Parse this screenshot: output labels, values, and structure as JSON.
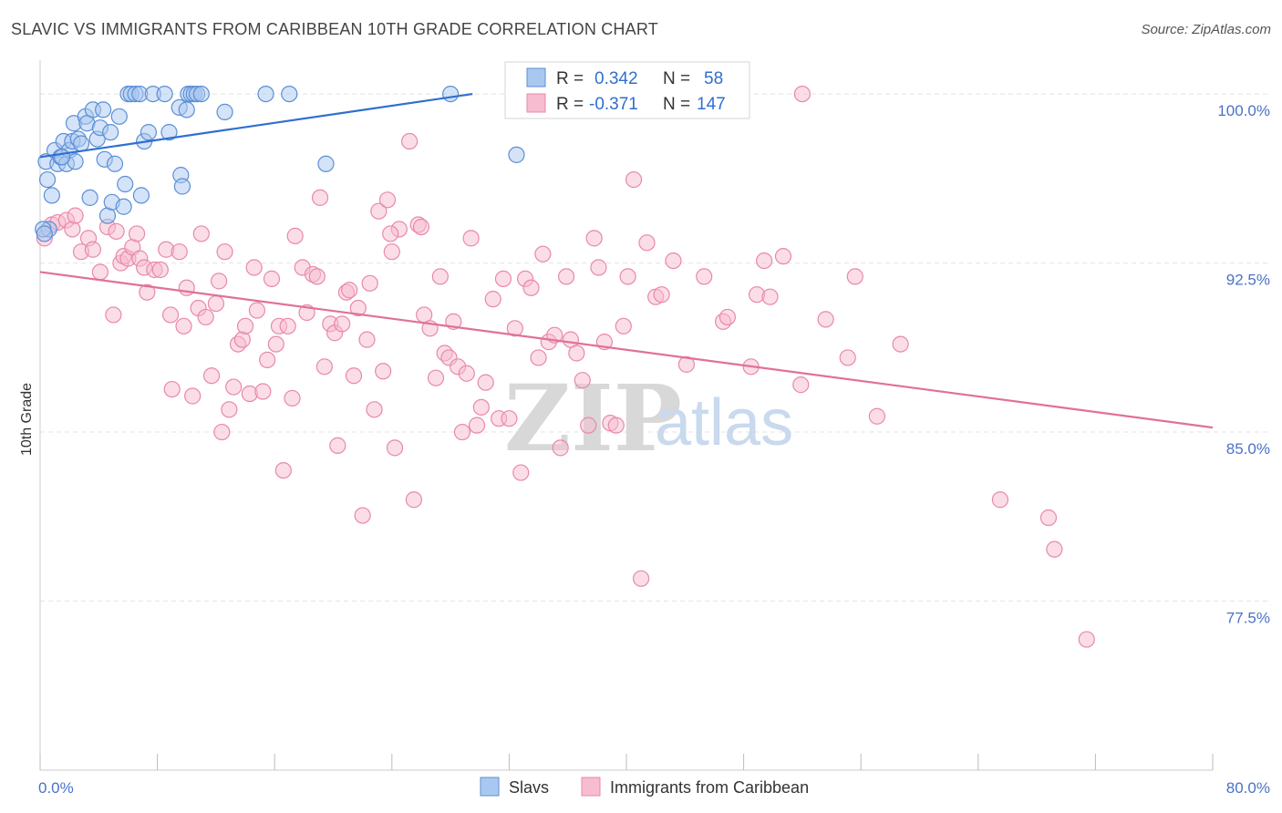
{
  "header": {
    "title": "SLAVIC VS IMMIGRANTS FROM CARIBBEAN 10TH GRADE CORRELATION CHART",
    "source": "Source: ZipAtlas.com"
  },
  "watermark": {
    "zip": "ZIP",
    "atlas": "atlas"
  },
  "colors": {
    "slavs_fill": "#a9c8f0",
    "slavs_stroke": "#5b8fd6",
    "slavs_line": "#2f6fcf",
    "carib_fill": "#f7bcd0",
    "carib_stroke": "#e889a8",
    "carib_line": "#e0709a",
    "grid": "#e3e3e3",
    "tick_label": "#4a72c8"
  },
  "legend": {
    "rows": [
      {
        "r_label": "R =",
        "r_value": "0.342",
        "n_label": "N =",
        "n_value": "58"
      },
      {
        "r_label": "R =",
        "r_value": "-0.371",
        "n_label": "N =",
        "n_value": "147"
      }
    ]
  },
  "chart_data": {
    "type": "scatter",
    "xlabel": "",
    "ylabel": "10th Grade",
    "xlim": [
      0,
      80
    ],
    "ylim": [
      70,
      101.5
    ],
    "x_tick_labels": [
      "0.0%",
      "80.0%"
    ],
    "y_ticks": [
      100,
      92.5,
      85,
      77.5
    ],
    "y_tick_labels": [
      "100.0%",
      "92.5%",
      "85.0%",
      "77.5%"
    ],
    "grid": true,
    "legend_position": "top-center",
    "series": [
      {
        "name": "Slavs",
        "color": "#a9c8f0",
        "r": 0.342,
        "n": 58,
        "trend": {
          "x": [
            0,
            29.5
          ],
          "y": [
            97.2,
            100
          ]
        },
        "points": [
          [
            0.4,
            97.0
          ],
          [
            0.5,
            96.2
          ],
          [
            0.6,
            94.0
          ],
          [
            0.8,
            95.5
          ],
          [
            1.0,
            97.5
          ],
          [
            1.2,
            96.9
          ],
          [
            1.4,
            97.2
          ],
          [
            1.6,
            97.9
          ],
          [
            1.8,
            96.9
          ],
          [
            2.0,
            97.5
          ],
          [
            2.2,
            97.9
          ],
          [
            2.3,
            98.7
          ],
          [
            2.4,
            97.0
          ],
          [
            2.6,
            98.0
          ],
          [
            2.8,
            97.8
          ],
          [
            3.1,
            99.0
          ],
          [
            3.2,
            98.7
          ],
          [
            3.4,
            95.4
          ],
          [
            3.6,
            99.3
          ],
          [
            3.9,
            98.0
          ],
          [
            4.1,
            98.5
          ],
          [
            4.3,
            99.3
          ],
          [
            4.4,
            97.1
          ],
          [
            4.6,
            94.6
          ],
          [
            4.8,
            98.3
          ],
          [
            4.9,
            95.2
          ],
          [
            5.1,
            96.9
          ],
          [
            5.4,
            99.0
          ],
          [
            5.7,
            95.0
          ],
          [
            5.8,
            96.0
          ],
          [
            6.0,
            100.0
          ],
          [
            6.2,
            100.0
          ],
          [
            6.5,
            100.0
          ],
          [
            6.8,
            100.0
          ],
          [
            6.9,
            95.5
          ],
          [
            7.1,
            97.9
          ],
          [
            7.4,
            98.3
          ],
          [
            7.7,
            100.0
          ],
          [
            8.5,
            100.0
          ],
          [
            8.8,
            98.3
          ],
          [
            9.5,
            99.4
          ],
          [
            9.6,
            96.4
          ],
          [
            9.7,
            95.9
          ],
          [
            10.0,
            99.3
          ],
          [
            10.1,
            100.0
          ],
          [
            10.3,
            100.0
          ],
          [
            10.5,
            100.0
          ],
          [
            10.7,
            100.0
          ],
          [
            11.0,
            100.0
          ],
          [
            12.6,
            99.2
          ],
          [
            15.4,
            100.0
          ],
          [
            17.0,
            100.0
          ],
          [
            19.5,
            96.9
          ],
          [
            28.0,
            100.0
          ],
          [
            32.5,
            97.3
          ],
          [
            0.2,
            94.0
          ],
          [
            0.3,
            93.8
          ],
          [
            1.5,
            97.2
          ]
        ]
      },
      {
        "name": "Immigrants from Caribbean",
        "color": "#f7bcd0",
        "r": -0.371,
        "n": 147,
        "trend": {
          "x": [
            0,
            80
          ],
          "y": [
            92.1,
            85.2
          ]
        },
        "points": [
          [
            0.3,
            93.6
          ],
          [
            0.8,
            94.2
          ],
          [
            1.2,
            94.3
          ],
          [
            1.8,
            94.4
          ],
          [
            2.2,
            94.0
          ],
          [
            2.4,
            94.6
          ],
          [
            2.8,
            93.0
          ],
          [
            3.3,
            93.6
          ],
          [
            3.6,
            93.1
          ],
          [
            4.1,
            92.1
          ],
          [
            4.6,
            94.1
          ],
          [
            5.0,
            90.2
          ],
          [
            5.2,
            93.9
          ],
          [
            5.5,
            92.5
          ],
          [
            5.7,
            92.8
          ],
          [
            6.0,
            92.7
          ],
          [
            6.3,
            93.2
          ],
          [
            6.6,
            93.8
          ],
          [
            6.8,
            92.7
          ],
          [
            7.1,
            92.3
          ],
          [
            7.3,
            91.2
          ],
          [
            7.8,
            92.2
          ],
          [
            8.2,
            92.2
          ],
          [
            8.6,
            93.1
          ],
          [
            8.9,
            90.2
          ],
          [
            9.0,
            86.9
          ],
          [
            9.5,
            93.0
          ],
          [
            9.8,
            89.7
          ],
          [
            10.0,
            91.4
          ],
          [
            10.4,
            86.6
          ],
          [
            10.8,
            90.5
          ],
          [
            11.0,
            93.8
          ],
          [
            11.3,
            90.1
          ],
          [
            11.7,
            87.5
          ],
          [
            12.0,
            90.7
          ],
          [
            12.2,
            91.7
          ],
          [
            12.4,
            85.0
          ],
          [
            12.6,
            93.0
          ],
          [
            12.9,
            86.0
          ],
          [
            13.2,
            87.0
          ],
          [
            13.5,
            88.9
          ],
          [
            13.8,
            89.1
          ],
          [
            14.0,
            89.7
          ],
          [
            14.3,
            86.7
          ],
          [
            14.6,
            92.3
          ],
          [
            14.8,
            90.4
          ],
          [
            15.2,
            86.8
          ],
          [
            15.5,
            88.2
          ],
          [
            15.8,
            91.8
          ],
          [
            16.1,
            88.9
          ],
          [
            16.3,
            89.7
          ],
          [
            16.6,
            83.3
          ],
          [
            16.9,
            89.7
          ],
          [
            17.2,
            86.5
          ],
          [
            17.4,
            93.7
          ],
          [
            17.9,
            92.3
          ],
          [
            18.2,
            90.3
          ],
          [
            18.6,
            92.0
          ],
          [
            18.9,
            91.9
          ],
          [
            19.1,
            95.4
          ],
          [
            19.4,
            87.9
          ],
          [
            19.8,
            89.8
          ],
          [
            20.1,
            89.4
          ],
          [
            20.3,
            84.4
          ],
          [
            20.6,
            89.8
          ],
          [
            20.9,
            91.2
          ],
          [
            21.1,
            91.3
          ],
          [
            21.4,
            87.5
          ],
          [
            21.7,
            90.5
          ],
          [
            22.0,
            81.3
          ],
          [
            22.3,
            89.1
          ],
          [
            22.5,
            91.6
          ],
          [
            22.8,
            86.0
          ],
          [
            23.1,
            94.8
          ],
          [
            23.4,
            87.7
          ],
          [
            23.7,
            95.3
          ],
          [
            24.0,
            93.0
          ],
          [
            24.2,
            84.3
          ],
          [
            24.5,
            94.0
          ],
          [
            25.2,
            97.9
          ],
          [
            25.5,
            82.0
          ],
          [
            25.8,
            94.2
          ],
          [
            26.2,
            90.2
          ],
          [
            26.6,
            89.6
          ],
          [
            27.0,
            87.4
          ],
          [
            27.3,
            91.9
          ],
          [
            27.6,
            88.5
          ],
          [
            27.9,
            88.3
          ],
          [
            28.2,
            89.9
          ],
          [
            28.5,
            87.9
          ],
          [
            28.8,
            85.0
          ],
          [
            29.1,
            87.6
          ],
          [
            29.4,
            93.6
          ],
          [
            29.8,
            85.3
          ],
          [
            30.1,
            86.1
          ],
          [
            30.4,
            87.2
          ],
          [
            30.9,
            90.9
          ],
          [
            31.3,
            85.6
          ],
          [
            31.6,
            91.8
          ],
          [
            32.0,
            85.6
          ],
          [
            32.4,
            89.6
          ],
          [
            32.8,
            83.2
          ],
          [
            33.1,
            91.8
          ],
          [
            33.5,
            91.4
          ],
          [
            34.0,
            88.3
          ],
          [
            34.3,
            92.9
          ],
          [
            34.7,
            89.0
          ],
          [
            35.1,
            89.3
          ],
          [
            35.5,
            84.3
          ],
          [
            35.9,
            91.9
          ],
          [
            36.2,
            89.1
          ],
          [
            36.6,
            88.5
          ],
          [
            37.0,
            87.3
          ],
          [
            37.4,
            85.3
          ],
          [
            37.8,
            93.6
          ],
          [
            38.1,
            92.3
          ],
          [
            38.5,
            89.0
          ],
          [
            38.9,
            85.4
          ],
          [
            39.3,
            85.3
          ],
          [
            39.8,
            89.7
          ],
          [
            40.1,
            91.9
          ],
          [
            40.5,
            96.2
          ],
          [
            41.0,
            78.5
          ],
          [
            41.4,
            93.4
          ],
          [
            42.0,
            91.0
          ],
          [
            42.4,
            91.1
          ],
          [
            43.2,
            92.6
          ],
          [
            44.1,
            88.0
          ],
          [
            45.3,
            91.9
          ],
          [
            46.6,
            89.9
          ],
          [
            46.9,
            90.1
          ],
          [
            48.5,
            87.9
          ],
          [
            48.9,
            91.1
          ],
          [
            49.4,
            92.6
          ],
          [
            49.8,
            91.0
          ],
          [
            50.7,
            92.8
          ],
          [
            51.9,
            87.1
          ],
          [
            53.6,
            90.0
          ],
          [
            55.1,
            88.3
          ],
          [
            55.6,
            91.9
          ],
          [
            57.1,
            85.7
          ],
          [
            58.7,
            88.9
          ],
          [
            65.5,
            82.0
          ],
          [
            68.8,
            81.2
          ],
          [
            69.2,
            79.8
          ],
          [
            71.4,
            75.8
          ],
          [
            52.0,
            100.0
          ],
          [
            23.9,
            93.8
          ],
          [
            26.0,
            94.1
          ]
        ]
      }
    ]
  },
  "bottom_legend": {
    "slavs_label": "Slavs",
    "carib_label": "Immigrants from Caribbean"
  }
}
